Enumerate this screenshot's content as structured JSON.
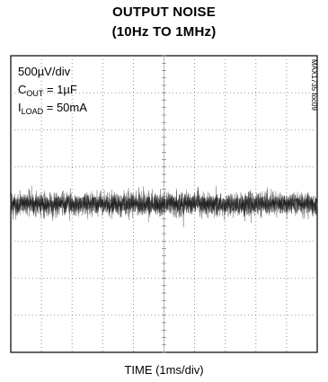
{
  "chart_data": {
    "type": "line",
    "title_line1": "OUTPUT NOISE",
    "title_line2": "(10Hz TO 1MHz)",
    "xlabel": "TIME (1ms/div)",
    "annotations": {
      "vertical_scale": "500µV/div",
      "cout_label": "C",
      "cout_sub": "OUT",
      "cout_value": " = 1µF",
      "iload_label": "I",
      "iload_sub": "LOAD",
      "iload_value": " = 50mA"
    },
    "figure_code": "MAX1735 toc09",
    "grid": {
      "divisions_x": 10,
      "divisions_y": 8,
      "dotted": true
    },
    "x_range_div": [
      0,
      10
    ],
    "y_range_div": [
      -4,
      4
    ],
    "series": [
      {
        "trace": "noise",
        "center_div": 0.0,
        "peak_to_peak_div": 1.2,
        "color": "#111111"
      }
    ]
  }
}
